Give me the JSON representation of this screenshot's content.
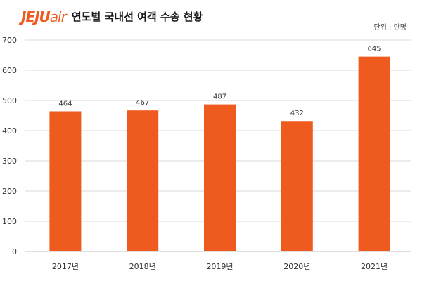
{
  "header": {
    "logo_part1": "JEJU",
    "logo_part2": "air",
    "title": "연도별 국내선 여객 수송 현황",
    "unit": "단위 : 만명"
  },
  "colors": {
    "bar": "#ef5b1f",
    "brand": "#ef5b1f",
    "grid": "#d9d9d9"
  },
  "chart_data": {
    "type": "bar",
    "title": "연도별 국내선 여객 수송 현황",
    "xlabel": "",
    "ylabel": "",
    "unit": "단위 : 만명",
    "categories": [
      "2017년",
      "2018년",
      "2019년",
      "2020년",
      "2021년"
    ],
    "values": [
      464,
      467,
      487,
      432,
      645
    ],
    "ylim": [
      0,
      700
    ],
    "yticks": [
      0,
      100,
      200,
      300,
      400,
      500,
      600,
      700
    ],
    "grid": true,
    "legend": "none"
  }
}
